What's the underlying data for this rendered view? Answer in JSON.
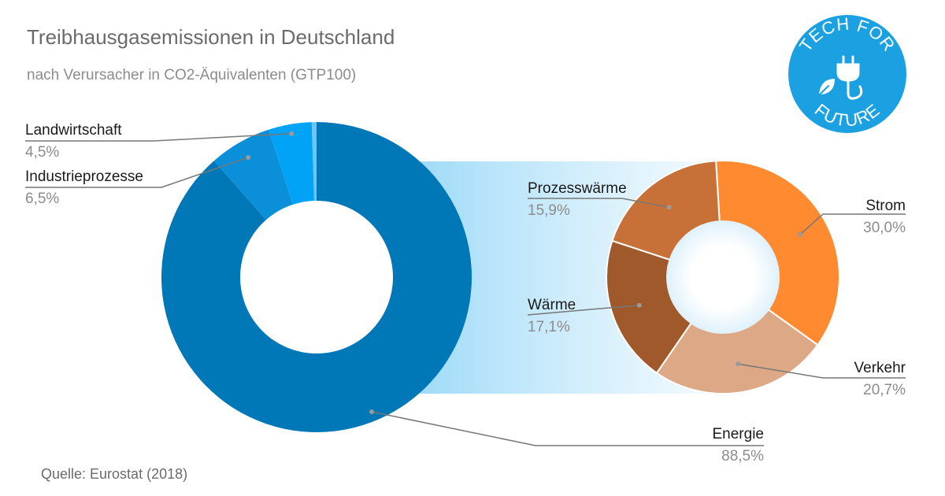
{
  "title": "Treibhausgasemissionen in Deutschland",
  "subtitle": "nach Verursacher in CO2-Äquivalenten (GTP100)",
  "source": "Quelle: Eurostat (2018)",
  "logo": {
    "top_text": "TECH FOR",
    "bottom_text": "FUTURE",
    "icon": "plug-leaf-icon",
    "color": "#1ba1e2"
  },
  "chart_data": [
    {
      "type": "pie",
      "variant": "donut",
      "slices": [
        {
          "label": "Energie",
          "value": 88.5,
          "value_label": "88,5%",
          "color": "#0077b6"
        },
        {
          "label": "Industrieprozesse",
          "value": 6.5,
          "value_label": "6,5%",
          "color": "#0a8fd8"
        },
        {
          "label": "Landwirtschaft",
          "value": 4.5,
          "value_label": "4,5%",
          "color": "#00a3f5"
        },
        {
          "label": "",
          "value": 0.5,
          "value_label": "",
          "color": "#6cc6f5"
        }
      ]
    },
    {
      "type": "pie",
      "variant": "donut",
      "breakdown_of": "Energie",
      "slices": [
        {
          "label": "Strom",
          "value": 30.0,
          "value_label": "30,0%",
          "color": "#ff8a30"
        },
        {
          "label": "Verkehr",
          "value": 20.7,
          "value_label": "20,7%",
          "color": "#dda886"
        },
        {
          "label": "Wärme",
          "value": 17.1,
          "value_label": "17,1%",
          "color": "#a0592a"
        },
        {
          "label": "Prozesswärme",
          "value": 15.9,
          "value_label": "15,9%",
          "color": "#c77138"
        }
      ]
    }
  ]
}
